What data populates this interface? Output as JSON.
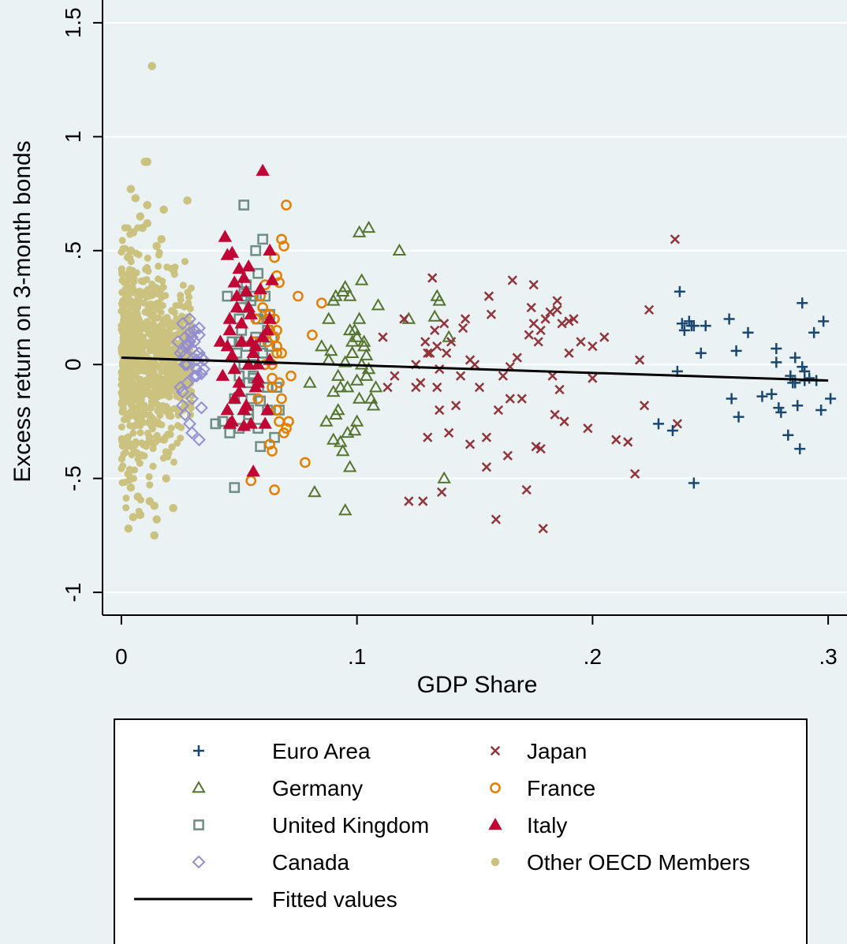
{
  "chart_data": {
    "type": "scatter",
    "title": "",
    "xlabel": "GDP Share",
    "ylabel": "Excess return on 3-month bonds",
    "xlim": [
      -0.008,
      0.308
    ],
    "ylim": [
      -1.1,
      1.6
    ],
    "x_ticks": [
      {
        "value": 0,
        "label": "0"
      },
      {
        "value": 0.1,
        "label": ".1"
      },
      {
        "value": 0.2,
        "label": ".2"
      },
      {
        "value": 0.3,
        "label": ".3"
      }
    ],
    "y_ticks": [
      {
        "value": -1,
        "label": "-1"
      },
      {
        "value": -0.5,
        "label": "-.5"
      },
      {
        "value": 0,
        "label": "0"
      },
      {
        "value": 0.5,
        "label": ".5"
      },
      {
        "value": 1,
        "label": "1"
      },
      {
        "value": 1.5,
        "label": "1.5"
      }
    ],
    "grid": "horizontal",
    "legend_position": "bottom",
    "colors": {
      "background": "#eaf2f3",
      "plot_area": "#eaf2f3",
      "grid": "#ffffff",
      "euro_area": "#1a476f",
      "japan": "#90353b",
      "germany": "#55752f",
      "france": "#e37e00",
      "uk": "#6e8e84",
      "italy": "#c10534",
      "canada": "#938dd2",
      "other": "#cac27e",
      "fitted": "#000000"
    },
    "fitted_line": {
      "name": "Fitted values",
      "x": [
        0.0,
        0.3
      ],
      "y": [
        0.03,
        -0.07
      ]
    },
    "series": [
      {
        "name": "Euro Area",
        "marker": "plus",
        "color": "#1a476f",
        "x": [
          0.237,
          0.238,
          0.239,
          0.241,
          0.243,
          0.246,
          0.248,
          0.258,
          0.261,
          0.262,
          0.266,
          0.272,
          0.276,
          0.278,
          0.279,
          0.28,
          0.283,
          0.284,
          0.285,
          0.286,
          0.287,
          0.288,
          0.289,
          0.29,
          0.292,
          0.294,
          0.295,
          0.297,
          0.298,
          0.301,
          0.228,
          0.234,
          0.236,
          0.243,
          0.259,
          0.278,
          0.286,
          0.289,
          0.242,
          0.29
        ],
        "y": [
          0.32,
          0.18,
          0.15,
          0.19,
          0.17,
          0.05,
          0.17,
          0.2,
          0.06,
          -0.23,
          0.14,
          -0.14,
          -0.13,
          0.07,
          -0.19,
          -0.21,
          -0.31,
          -0.05,
          -0.08,
          0.03,
          -0.18,
          -0.37,
          0.27,
          -0.03,
          -0.06,
          0.14,
          -0.07,
          -0.2,
          0.19,
          -0.15,
          -0.26,
          -0.29,
          -0.03,
          -0.52,
          -0.15,
          0.01,
          -0.08,
          -0.01,
          0.17,
          -0.07
        ]
      },
      {
        "name": "Japan",
        "marker": "x",
        "color": "#90353b",
        "x": [
          0.111,
          0.113,
          0.116,
          0.12,
          0.122,
          0.125,
          0.127,
          0.129,
          0.13,
          0.131,
          0.132,
          0.133,
          0.134,
          0.135,
          0.136,
          0.137,
          0.138,
          0.139,
          0.14,
          0.142,
          0.144,
          0.146,
          0.148,
          0.15,
          0.152,
          0.155,
          0.157,
          0.159,
          0.16,
          0.162,
          0.164,
          0.166,
          0.168,
          0.17,
          0.172,
          0.174,
          0.175,
          0.176,
          0.177,
          0.178,
          0.18,
          0.182,
          0.183,
          0.184,
          0.185,
          0.186,
          0.187,
          0.188,
          0.19,
          0.192,
          0.195,
          0.198,
          0.2,
          0.205,
          0.21,
          0.215,
          0.218,
          0.22,
          0.222,
          0.224,
          0.236,
          0.235,
          0.128,
          0.134,
          0.165,
          0.173,
          0.148,
          0.156,
          0.179,
          0.13,
          0.145,
          0.178,
          0.19,
          0.185,
          0.2,
          0.125,
          0.135,
          0.155,
          0.165,
          0.175
        ],
        "y": [
          0.12,
          -0.1,
          -0.05,
          0.2,
          -0.6,
          0.0,
          -0.08,
          0.1,
          -0.32,
          0.05,
          0.38,
          0.15,
          -0.1,
          -0.2,
          -0.56,
          0.18,
          0.05,
          -0.3,
          0.1,
          -0.18,
          -0.05,
          0.2,
          -0.35,
          0.0,
          -0.1,
          -0.45,
          0.22,
          -0.68,
          -0.2,
          -0.05,
          -0.4,
          0.37,
          0.03,
          -0.15,
          -0.55,
          0.25,
          0.35,
          -0.36,
          0.1,
          -0.37,
          0.2,
          0.23,
          -0.05,
          -0.22,
          0.28,
          -0.11,
          0.18,
          -0.25,
          0.05,
          0.2,
          0.1,
          -0.28,
          0.08,
          0.12,
          -0.33,
          -0.34,
          -0.48,
          0.02,
          -0.18,
          0.24,
          -0.26,
          0.55,
          -0.6,
          0.08,
          -0.01,
          0.13,
          0.02,
          0.3,
          -0.72,
          0.05,
          0.16,
          0.15,
          0.19,
          0.24,
          -0.06,
          -0.1,
          -0.02,
          -0.32,
          -0.15,
          0.18
        ]
      },
      {
        "name": "Germany",
        "marker": "triangle",
        "color": "#55752f",
        "x": [
          0.08,
          0.082,
          0.085,
          0.087,
          0.088,
          0.09,
          0.09,
          0.091,
          0.092,
          0.093,
          0.094,
          0.095,
          0.096,
          0.097,
          0.098,
          0.098,
          0.099,
          0.1,
          0.1,
          0.101,
          0.102,
          0.103,
          0.104,
          0.105,
          0.106,
          0.107,
          0.108,
          0.088,
          0.092,
          0.094,
          0.096,
          0.098,
          0.1,
          0.102,
          0.104,
          0.093,
          0.095,
          0.097,
          0.099,
          0.101,
          0.103,
          0.091,
          0.089,
          0.095,
          0.097,
          0.101,
          0.105,
          0.109,
          0.118,
          0.133,
          0.135,
          0.137,
          0.139,
          0.134,
          0.122,
          0.09
        ],
        "y": [
          -0.08,
          -0.56,
          0.08,
          -0.25,
          0.2,
          0.28,
          -0.33,
          0.3,
          -0.05,
          -0.34,
          0.32,
          0.01,
          -0.1,
          -0.45,
          0.1,
          0.05,
          0.15,
          -0.25,
          -0.07,
          0.58,
          0.0,
          0.1,
          -0.05,
          0.6,
          -0.15,
          -0.18,
          -0.1,
          0.02,
          -0.2,
          -0.38,
          -0.3,
          0.05,
          0.12,
          0.37,
          0.04,
          -0.1,
          -0.64,
          0.15,
          -0.29,
          0.2,
          0.08,
          -0.22,
          0.06,
          0.34,
          0.3,
          -0.15,
          -0.02,
          0.26,
          0.5,
          0.21,
          0.28,
          -0.5,
          0.12,
          0.3,
          0.2,
          -0.12
        ]
      },
      {
        "name": "France",
        "marker": "circle",
        "color": "#e37e00",
        "x": [
          0.055,
          0.056,
          0.057,
          0.058,
          0.059,
          0.06,
          0.061,
          0.062,
          0.063,
          0.064,
          0.065,
          0.066,
          0.067,
          0.068,
          0.069,
          0.07,
          0.071,
          0.072,
          0.075,
          0.078,
          0.081,
          0.085,
          0.065,
          0.066,
          0.067,
          0.068,
          0.069,
          0.063,
          0.064,
          0.062,
          0.061,
          0.065,
          0.066,
          0.067,
          0.063,
          0.064,
          0.066,
          0.068,
          0.07,
          0.065,
          0.064,
          0.066
        ],
        "y": [
          -0.51,
          0.1,
          0.2,
          -0.15,
          0.3,
          0.25,
          0.0,
          0.2,
          -0.35,
          -0.38,
          -0.55,
          -0.2,
          0.36,
          0.55,
          0.52,
          0.7,
          -0.25,
          -0.05,
          0.3,
          -0.43,
          0.13,
          0.27,
          0.47,
          0.15,
          -0.08,
          0.05,
          -0.3,
          0.22,
          -0.1,
          0.1,
          0.35,
          0.2,
          0.05,
          -0.25,
          0.15,
          0.0,
          0.08,
          -0.15,
          -0.28,
          0.12,
          -0.06,
          0.39
        ]
      },
      {
        "name": "United Kingdom",
        "marker": "square",
        "color": "#6e8e84",
        "x": [
          0.04,
          0.043,
          0.045,
          0.047,
          0.048,
          0.049,
          0.05,
          0.051,
          0.052,
          0.053,
          0.054,
          0.055,
          0.056,
          0.057,
          0.058,
          0.059,
          0.06,
          0.061,
          0.062,
          0.063,
          0.064,
          0.065,
          0.066,
          0.067,
          0.05,
          0.051,
          0.052,
          0.053,
          0.054,
          0.055,
          0.056,
          0.057,
          0.058,
          0.059,
          0.06,
          0.061,
          0.062,
          0.063,
          0.05,
          0.055,
          0.058,
          0.06,
          0.052,
          0.056,
          0.059,
          0.062,
          0.057,
          0.054,
          0.05,
          0.053,
          0.048,
          0.046
        ],
        "y": [
          -0.26,
          -0.25,
          0.3,
          0.1,
          -0.15,
          0.05,
          0.2,
          0.25,
          0.7,
          0.35,
          -0.08,
          0.0,
          0.3,
          0.5,
          0.4,
          0.1,
          0.55,
          0.22,
          -0.2,
          0.08,
          0.12,
          -0.32,
          -0.1,
          -0.2,
          -0.28,
          0.15,
          0.0,
          0.3,
          -0.22,
          -0.15,
          -0.06,
          0.12,
          0.2,
          -0.36,
          0.05,
          0.3,
          -0.1,
          0.22,
          0.1,
          0.28,
          -0.28,
          0.05,
          0.32,
          -0.05,
          -0.16,
          0.15,
          0.1,
          -0.2,
          -0.05,
          0.08,
          -0.54,
          -0.3
        ]
      },
      {
        "name": "Italy",
        "marker": "triangle-filled",
        "color": "#c10534",
        "x": [
          0.042,
          0.043,
          0.044,
          0.045,
          0.046,
          0.047,
          0.048,
          0.049,
          0.05,
          0.051,
          0.052,
          0.053,
          0.054,
          0.055,
          0.056,
          0.057,
          0.058,
          0.059,
          0.06,
          0.061,
          0.062,
          0.063,
          0.064,
          0.045,
          0.046,
          0.047,
          0.048,
          0.049,
          0.05,
          0.051,
          0.052,
          0.053,
          0.054,
          0.055,
          0.056,
          0.057,
          0.058,
          0.06,
          0.062,
          0.063,
          0.047,
          0.048,
          0.055,
          0.063,
          0.05,
          0.052,
          0.045,
          0.054,
          0.058,
          0.046
        ],
        "y": [
          0.1,
          -0.05,
          0.56,
          0.48,
          0.2,
          -0.25,
          0.36,
          0.3,
          0.42,
          0.1,
          0.38,
          -0.18,
          0.43,
          0.22,
          0.05,
          -0.1,
          0.0,
          0.33,
          0.85,
          -0.26,
          0.15,
          0.5,
          0.37,
          -0.2,
          0.15,
          0.04,
          -0.15,
          0.25,
          -0.08,
          0.18,
          -0.2,
          0.32,
          0.0,
          -0.26,
          -0.47,
          0.08,
          -0.06,
          0.12,
          -0.2,
          0.2,
          0.49,
          -0.02,
          0.1,
          0.02,
          -0.12,
          -0.27,
          0.08,
          0.25,
          -0.08,
          -0.26
        ]
      },
      {
        "name": "Canada",
        "marker": "diamond",
        "color": "#938dd2",
        "x": [
          0.024,
          0.025,
          0.026,
          0.027,
          0.028,
          0.029,
          0.03,
          0.031,
          0.032,
          0.033,
          0.034,
          0.035,
          0.026,
          0.027,
          0.028,
          0.029,
          0.03,
          0.031,
          0.032,
          0.033,
          0.034,
          0.026,
          0.028,
          0.03,
          0.032,
          0.034,
          0.025,
          0.027,
          0.029,
          0.031,
          0.033,
          0.028,
          0.03,
          0.032,
          0.026,
          0.029,
          0.031,
          0.033,
          0.035,
          0.027
        ],
        "y": [
          0.1,
          0.05,
          0.18,
          0.12,
          0.0,
          0.2,
          0.07,
          0.15,
          -0.05,
          0.16,
          0.03,
          0.02,
          -0.18,
          -0.22,
          0.08,
          0.14,
          -0.3,
          0.1,
          -0.02,
          -0.33,
          -0.19,
          0.06,
          -0.08,
          0.12,
          0.04,
          -0.04,
          -0.1,
          0.0,
          -0.26,
          0.15,
          0.05,
          0.09,
          -0.15,
          0.02,
          -0.12,
          0.1,
          -0.05,
          0.13,
          -0.02,
          0.04
        ]
      },
      {
        "name": "Other OECD Members",
        "marker": "dot",
        "color": "#cac27e",
        "x": [
          0.013,
          0.01,
          0.011,
          0.004,
          0.006,
          0.003,
          0.004,
          0.005,
          0.014,
          0.022,
          0.015,
          0.018,
          0.028,
          0.017,
          0.011,
          0.005,
          0.008,
          0.012,
          0.007,
          0.003,
          0.009,
          0.014,
          0.011,
          0.004,
          0.019,
          0.015,
          0.008
        ],
        "y": [
          1.31,
          0.89,
          0.89,
          0.77,
          0.73,
          -0.72,
          -0.54,
          -0.67,
          -0.75,
          -0.63,
          -0.68,
          0.68,
          0.72,
          0.55,
          0.62,
          0.58,
          0.65,
          -0.6,
          -0.58,
          -0.48,
          0.6,
          -0.62,
          0.7,
          0.5,
          -0.5,
          0.52,
          -0.66
        ],
        "dense_cluster": {
          "x_min": 0.0,
          "x_max": 0.03,
          "y_mean": 0.02,
          "y_spread": 0.26,
          "count": 900,
          "seed": 20240501
        }
      }
    ]
  },
  "legend": {
    "items": [
      {
        "label": "Euro Area",
        "marker": "plus",
        "color": "#1a476f"
      },
      {
        "label": "Japan",
        "marker": "x",
        "color": "#90353b"
      },
      {
        "label": "Germany",
        "marker": "triangle",
        "color": "#55752f"
      },
      {
        "label": "France",
        "marker": "circle",
        "color": "#e37e00"
      },
      {
        "label": "United Kingdom",
        "marker": "square",
        "color": "#6e8e84"
      },
      {
        "label": "Italy",
        "marker": "triangle-filled",
        "color": "#c10534"
      },
      {
        "label": "Canada",
        "marker": "diamond",
        "color": "#938dd2"
      },
      {
        "label": "Other OECD Members",
        "marker": "dot",
        "color": "#cac27e"
      },
      {
        "label": "Fitted values",
        "marker": "line",
        "color": "#000000"
      }
    ]
  }
}
